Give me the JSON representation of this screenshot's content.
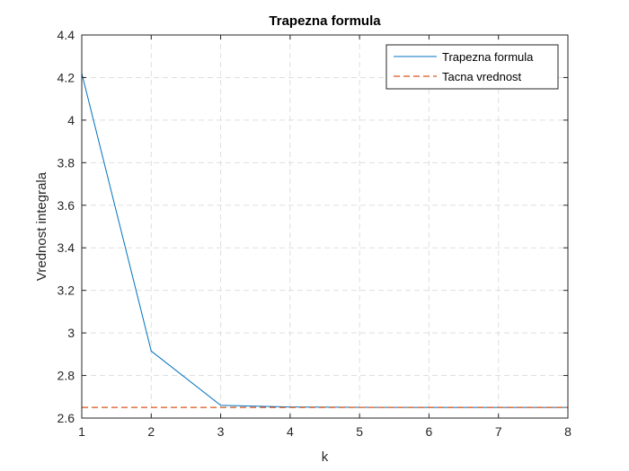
{
  "chart_data": {
    "type": "line",
    "title": "Trapezna formula",
    "xlabel": "k",
    "ylabel": "Vrednost integrala",
    "xlim": [
      1,
      8
    ],
    "ylim": [
      2.6,
      4.4
    ],
    "xticks": [
      "1",
      "2",
      "3",
      "4",
      "5",
      "6",
      "7",
      "8"
    ],
    "yticks": [
      "2.6",
      "2.8",
      "3",
      "3.2",
      "3.4",
      "3.6",
      "3.8",
      "4",
      "4.2",
      "4.4"
    ],
    "grid": true,
    "legend_position": "top-right",
    "x": [
      1,
      2,
      3,
      4,
      5,
      6,
      7,
      8
    ],
    "series": [
      {
        "name": "Trapezna formula",
        "values": [
          4.22,
          2.915,
          2.66,
          2.652,
          2.6505,
          2.6502,
          2.6501,
          2.6501
        ],
        "color": "#0072BD",
        "style": "solid"
      },
      {
        "name": "Tacna vrednost",
        "values": [
          2.65,
          2.65,
          2.65,
          2.65,
          2.65,
          2.65,
          2.65,
          2.65
        ],
        "color": "#D95319",
        "style": "dashed"
      }
    ]
  }
}
